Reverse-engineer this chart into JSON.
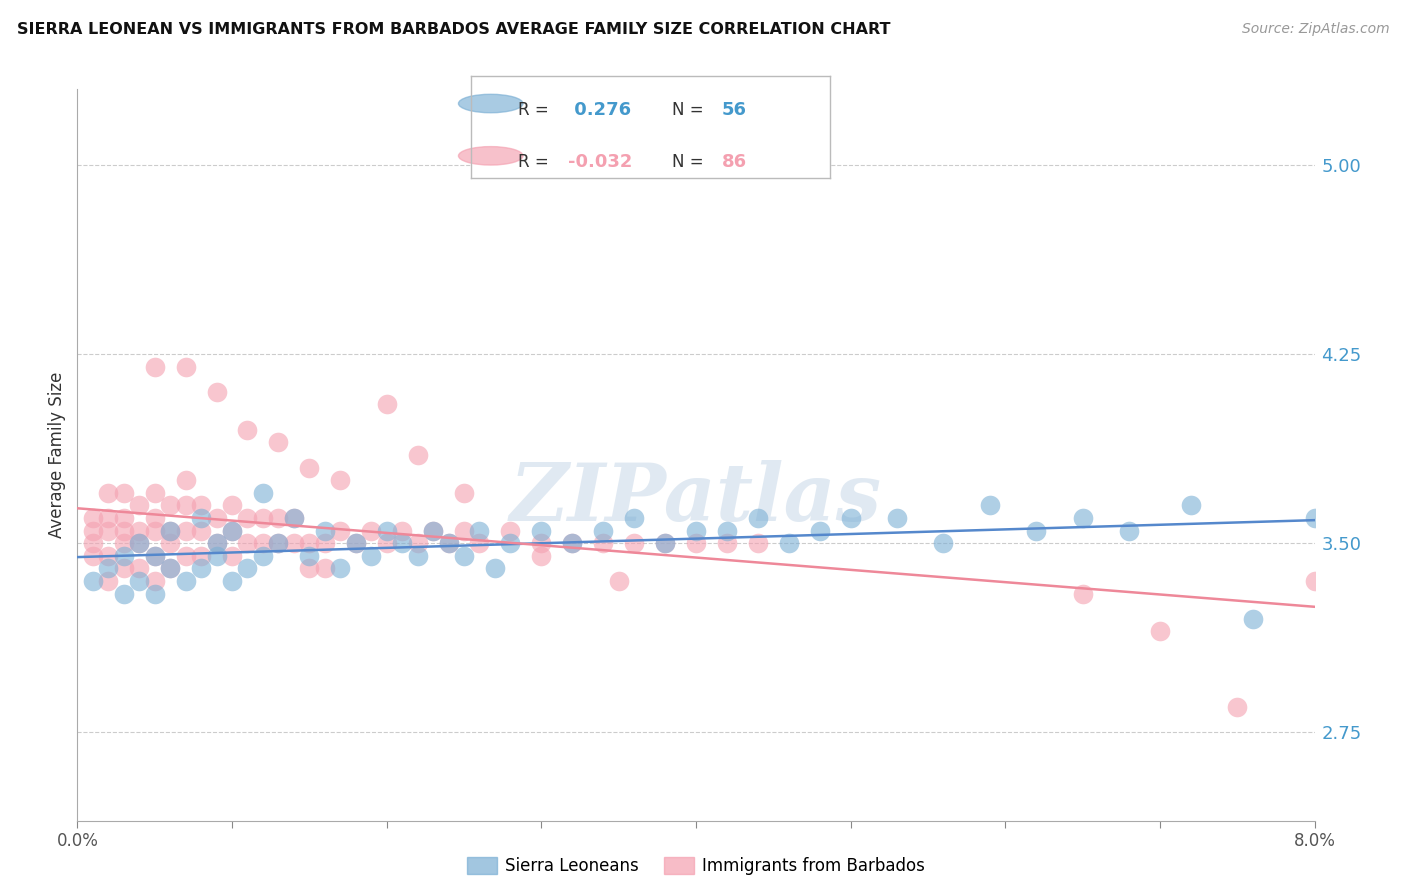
{
  "title": "SIERRA LEONEAN VS IMMIGRANTS FROM BARBADOS AVERAGE FAMILY SIZE CORRELATION CHART",
  "source": "Source: ZipAtlas.com",
  "ylabel": "Average Family Size",
  "xmin": 0.0,
  "xmax": 0.08,
  "ymin": 2.4,
  "ymax": 5.3,
  "yticks": [
    2.75,
    3.5,
    4.25,
    5.0
  ],
  "xticks": [
    0.0,
    0.01,
    0.02,
    0.03,
    0.04,
    0.05,
    0.06,
    0.07,
    0.08
  ],
  "grid_color": "#cccccc",
  "background_color": "#ffffff",
  "blue_color": "#7bafd4",
  "pink_color": "#f4a0b0",
  "blue_line_color": "#5588cc",
  "pink_line_color": "#ee8899",
  "axis_color": "#4499cc",
  "watermark": "ZIPatlas",
  "watermark_color": "#c8d8e8",
  "legend_R_blue": "0.276",
  "legend_N_blue": "56",
  "legend_R_pink": "-0.032",
  "legend_N_pink": "86",
  "legend_label_blue": "Sierra Leoneans",
  "legend_label_pink": "Immigrants from Barbados",
  "blue_scatter_x": [
    0.001,
    0.002,
    0.003,
    0.003,
    0.004,
    0.004,
    0.005,
    0.005,
    0.006,
    0.006,
    0.007,
    0.008,
    0.008,
    0.009,
    0.009,
    0.01,
    0.01,
    0.011,
    0.012,
    0.012,
    0.013,
    0.014,
    0.015,
    0.016,
    0.017,
    0.018,
    0.019,
    0.02,
    0.021,
    0.022,
    0.023,
    0.024,
    0.025,
    0.026,
    0.027,
    0.028,
    0.03,
    0.032,
    0.034,
    0.036,
    0.038,
    0.04,
    0.042,
    0.044,
    0.046,
    0.048,
    0.05,
    0.053,
    0.056,
    0.059,
    0.062,
    0.065,
    0.068,
    0.072,
    0.076,
    0.08
  ],
  "blue_scatter_y": [
    3.35,
    3.4,
    3.3,
    3.45,
    3.35,
    3.5,
    3.3,
    3.45,
    3.55,
    3.4,
    3.35,
    3.6,
    3.4,
    3.45,
    3.5,
    3.35,
    3.55,
    3.4,
    3.7,
    3.45,
    3.5,
    3.6,
    3.45,
    3.55,
    3.4,
    3.5,
    3.45,
    3.55,
    3.5,
    3.45,
    3.55,
    3.5,
    3.45,
    3.55,
    3.4,
    3.5,
    3.55,
    3.5,
    3.55,
    3.6,
    3.5,
    3.55,
    3.55,
    3.6,
    3.5,
    3.55,
    3.6,
    3.6,
    3.5,
    3.65,
    3.55,
    3.6,
    3.55,
    3.65,
    3.2,
    3.6
  ],
  "pink_scatter_x": [
    0.001,
    0.001,
    0.001,
    0.001,
    0.002,
    0.002,
    0.002,
    0.002,
    0.002,
    0.003,
    0.003,
    0.003,
    0.003,
    0.003,
    0.004,
    0.004,
    0.004,
    0.004,
    0.005,
    0.005,
    0.005,
    0.005,
    0.005,
    0.006,
    0.006,
    0.006,
    0.006,
    0.007,
    0.007,
    0.007,
    0.007,
    0.008,
    0.008,
    0.008,
    0.009,
    0.009,
    0.01,
    0.01,
    0.01,
    0.011,
    0.011,
    0.012,
    0.012,
    0.013,
    0.013,
    0.014,
    0.014,
    0.015,
    0.015,
    0.016,
    0.016,
    0.017,
    0.018,
    0.019,
    0.02,
    0.021,
    0.022,
    0.023,
    0.024,
    0.025,
    0.026,
    0.028,
    0.03,
    0.032,
    0.034,
    0.036,
    0.038,
    0.04,
    0.042,
    0.044,
    0.005,
    0.007,
    0.009,
    0.011,
    0.013,
    0.015,
    0.017,
    0.02,
    0.022,
    0.025,
    0.03,
    0.035,
    0.065,
    0.07,
    0.075,
    0.08
  ],
  "pink_scatter_y": [
    3.45,
    3.5,
    3.55,
    3.6,
    3.35,
    3.45,
    3.55,
    3.6,
    3.7,
    3.4,
    3.5,
    3.55,
    3.6,
    3.7,
    3.4,
    3.5,
    3.55,
    3.65,
    3.35,
    3.45,
    3.55,
    3.6,
    3.7,
    3.4,
    3.5,
    3.55,
    3.65,
    3.45,
    3.55,
    3.65,
    3.75,
    3.45,
    3.55,
    3.65,
    3.5,
    3.6,
    3.45,
    3.55,
    3.65,
    3.5,
    3.6,
    3.5,
    3.6,
    3.5,
    3.6,
    3.5,
    3.6,
    3.5,
    3.4,
    3.5,
    3.4,
    3.55,
    3.5,
    3.55,
    3.5,
    3.55,
    3.5,
    3.55,
    3.5,
    3.55,
    3.5,
    3.55,
    3.5,
    3.5,
    3.5,
    3.5,
    3.5,
    3.5,
    3.5,
    3.5,
    4.2,
    4.2,
    4.1,
    3.95,
    3.9,
    3.8,
    3.75,
    4.05,
    3.85,
    3.7,
    3.45,
    3.35,
    3.3,
    3.15,
    2.85,
    3.35
  ]
}
